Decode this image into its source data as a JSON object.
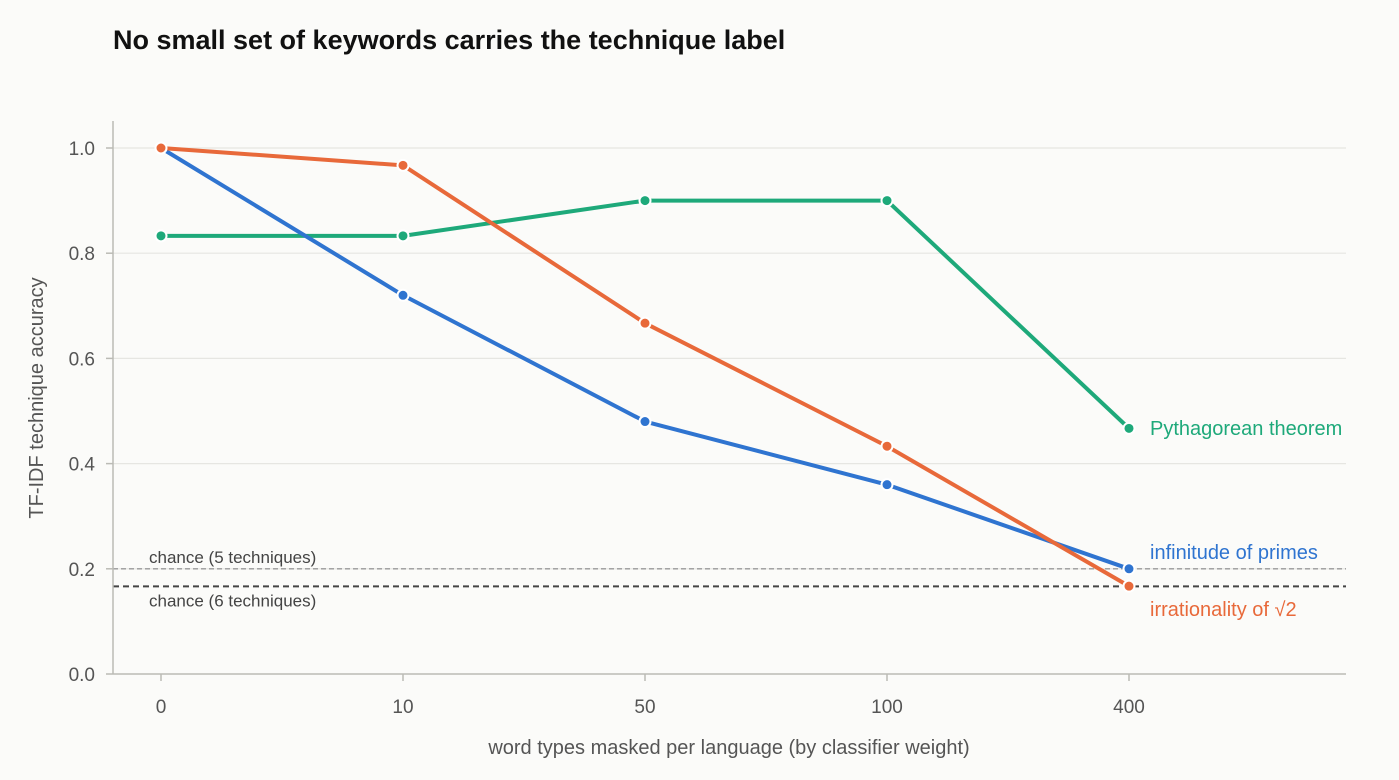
{
  "chart_data": {
    "type": "line",
    "title": "No small set of keywords carries the technique label",
    "xlabel": "word types masked per language (by classifier weight)",
    "ylabel": "TF-IDF technique accuracy",
    "categories": [
      "0",
      "10",
      "50",
      "100",
      "400"
    ],
    "ylim": [
      0,
      1.05
    ],
    "yticks": [
      0.0,
      0.2,
      0.4,
      0.6,
      0.8,
      1.0
    ],
    "ytick_labels": [
      "0.0",
      "0.2",
      "0.4",
      "0.6",
      "0.8",
      "1.0"
    ],
    "grid": "horizontal",
    "series": [
      {
        "name": "Pythagorean theorem",
        "color": "#1ea97a",
        "values": [
          0.833,
          0.833,
          0.9,
          0.9,
          0.467
        ]
      },
      {
        "name": "infinitude of primes",
        "color": "#2f74d0",
        "values": [
          1.0,
          0.72,
          0.48,
          0.36,
          0.2
        ]
      },
      {
        "name": "irrationality of √2",
        "color": "#e8693a",
        "values": [
          1.0,
          0.967,
          0.667,
          0.433,
          0.167
        ]
      }
    ],
    "reference_lines": [
      {
        "label": "chance (5 techniques)",
        "value": 0.2,
        "style": "dashed-light"
      },
      {
        "label": "chance (6 techniques)",
        "value": 0.1667,
        "style": "dashed-dark"
      }
    ]
  }
}
